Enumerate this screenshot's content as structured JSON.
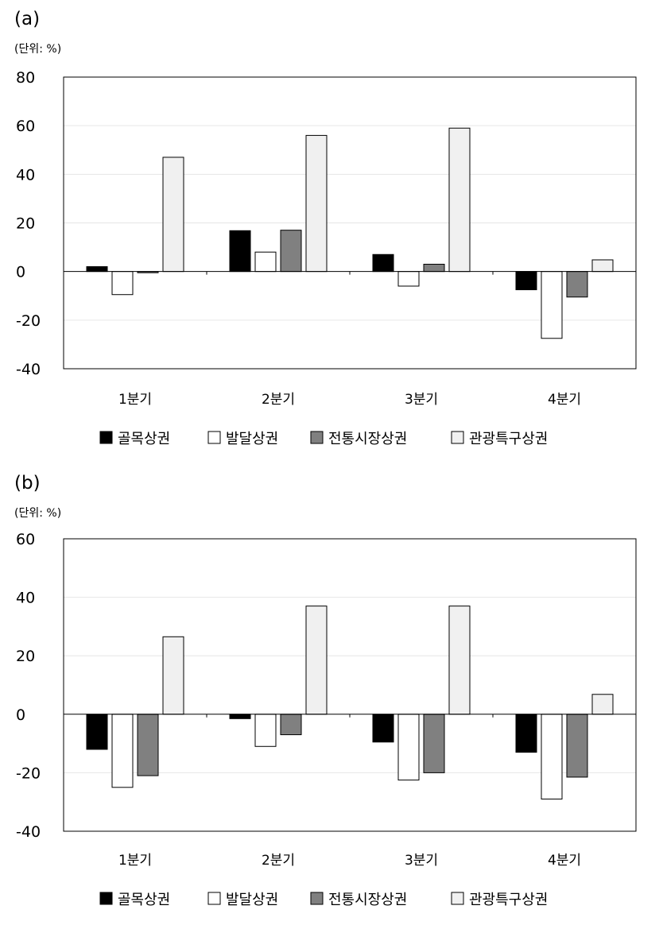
{
  "chart_data": [
    {
      "type": "bar",
      "panel_label": "(a)",
      "unit": "(단위: %)",
      "categories": [
        "1분기",
        "2분기",
        "3분기",
        "4분기"
      ],
      "ylim": [
        -40,
        80
      ],
      "yticks": [
        80,
        60,
        40,
        20,
        0,
        -20,
        -40
      ],
      "grid": true,
      "legend_position": "bottom",
      "series": [
        {
          "name": "골목상권",
          "color": "#000000",
          "values": [
            2.0,
            16.8,
            7.0,
            -7.5
          ]
        },
        {
          "name": "발달상권",
          "color": "#ffffff",
          "values": [
            -9.5,
            8.0,
            -6.0,
            -27.5
          ]
        },
        {
          "name": "전통시장상권",
          "color": "#808080",
          "values": [
            -0.5,
            17.0,
            3.0,
            -10.5
          ]
        },
        {
          "name": "관광특구상권",
          "color": "#f0f0f0",
          "values": [
            47.0,
            56.0,
            59.0,
            4.8
          ]
        }
      ]
    },
    {
      "type": "bar",
      "panel_label": "(b)",
      "unit": "(단위: %)",
      "categories": [
        "1분기",
        "2분기",
        "3분기",
        "4분기"
      ],
      "ylim": [
        -40,
        60
      ],
      "yticks": [
        60,
        40,
        20,
        0,
        -20,
        -40
      ],
      "grid": true,
      "legend_position": "bottom",
      "series": [
        {
          "name": "골목상권",
          "color": "#000000",
          "values": [
            -12.0,
            -1.5,
            -9.5,
            -13.0
          ]
        },
        {
          "name": "발달상권",
          "color": "#ffffff",
          "values": [
            -25.0,
            -11.0,
            -22.5,
            -29.0
          ]
        },
        {
          "name": "전통시장상권",
          "color": "#808080",
          "values": [
            -21.0,
            -7.0,
            -20.0,
            -21.5
          ]
        },
        {
          "name": "관광특구상권",
          "color": "#f0f0f0",
          "values": [
            26.5,
            37.0,
            37.0,
            6.8
          ]
        }
      ]
    }
  ]
}
